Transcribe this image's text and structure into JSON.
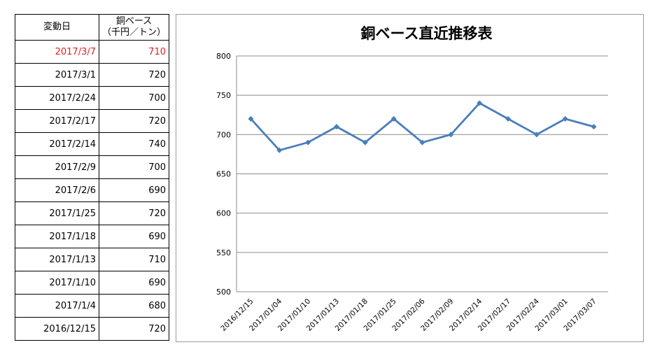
{
  "table": {
    "header_date": "変動日",
    "header_value_line1": "銅ベース",
    "header_value_line2": "（千円／トン）",
    "rows": [
      {
        "date": "2017/3/7",
        "value": "710"
      },
      {
        "date": "2017/3/1",
        "value": "720"
      },
      {
        "date": "2017/2/24",
        "value": "700"
      },
      {
        "date": "2017/2/17",
        "value": "720"
      },
      {
        "date": "2017/2/14",
        "value": "740"
      },
      {
        "date": "2017/2/9",
        "value": "700"
      },
      {
        "date": "2017/2/6",
        "value": "690"
      },
      {
        "date": "2017/1/25",
        "value": "720"
      },
      {
        "date": "2017/1/18",
        "value": "690"
      },
      {
        "date": "2017/1/13",
        "value": "710"
      },
      {
        "date": "2017/1/10",
        "value": "690"
      },
      {
        "date": "2017/1/4",
        "value": "680"
      },
      {
        "date": "2016/12/15",
        "value": "720"
      }
    ],
    "highlight_color": "#e02020"
  },
  "chart_data": {
    "type": "line",
    "title": "銅ベース直近推移表",
    "xlabel": "",
    "ylabel": "",
    "categories": [
      "2016/12/15",
      "2017/01/04",
      "2017/01/10",
      "2017/01/13",
      "2017/01/18",
      "2017/01/25",
      "2017/02/06",
      "2017/02/09",
      "2017/02/14",
      "2017/02/17",
      "2017/02/24",
      "2017/03/01",
      "2017/03/07"
    ],
    "series": [
      {
        "values": [
          720,
          680,
          690,
          710,
          690,
          720,
          690,
          700,
          740,
          720,
          700,
          720,
          710
        ],
        "color": "#4a7ebb"
      }
    ],
    "ylim": [
      500,
      800
    ],
    "yticks": [
      500,
      550,
      600,
      650,
      700,
      750,
      800
    ],
    "grid": true,
    "legend": "none"
  }
}
